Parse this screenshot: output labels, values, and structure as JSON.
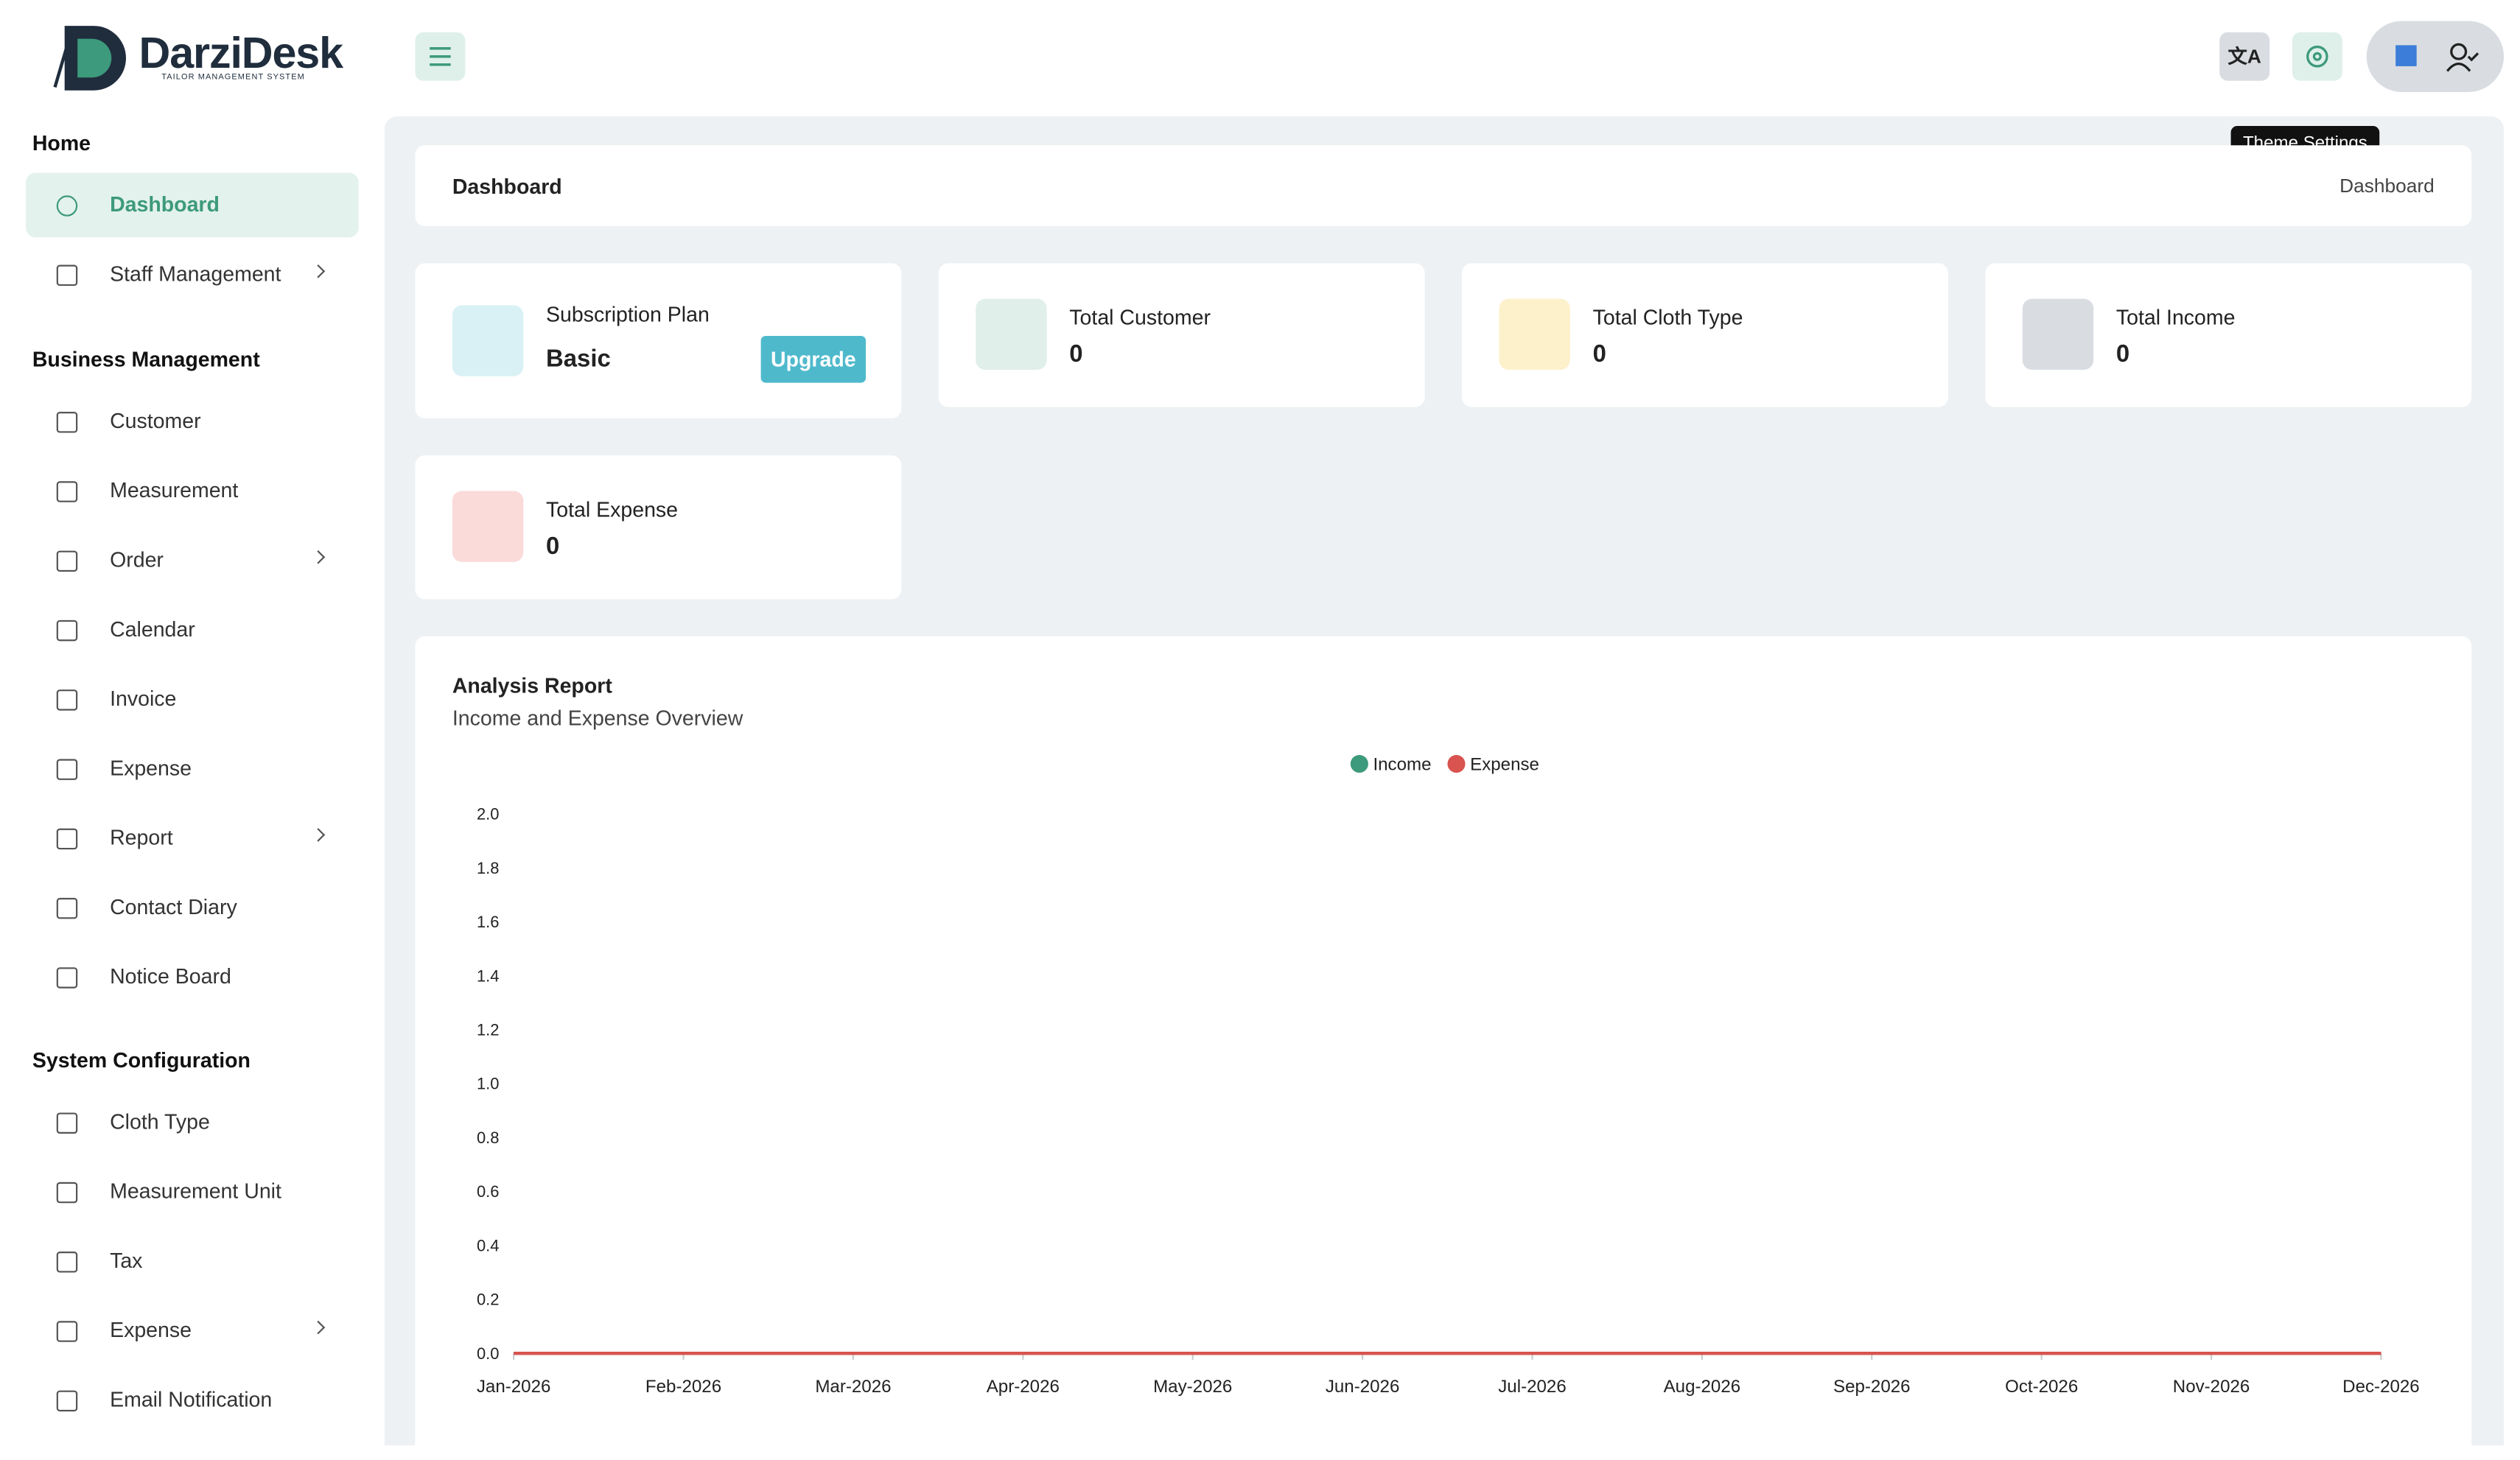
{
  "brand": {
    "name": "DarziDesk",
    "tagline": "TAILOR MANAGEMENT SYSTEM"
  },
  "tooltip": "Theme Settings",
  "sidebar": {
    "sections": [
      {
        "title": "Home",
        "items": [
          {
            "label": "Dashboard",
            "active": true
          },
          {
            "label": "Staff Management",
            "has_submenu": true
          }
        ]
      },
      {
        "title": "Business Management",
        "items": [
          {
            "label": "Customer"
          },
          {
            "label": "Measurement"
          },
          {
            "label": "Order",
            "has_submenu": true
          },
          {
            "label": "Calendar"
          },
          {
            "label": "Invoice"
          },
          {
            "label": "Expense"
          },
          {
            "label": "Report",
            "has_submenu": true
          },
          {
            "label": "Contact Diary"
          },
          {
            "label": "Notice Board"
          }
        ]
      },
      {
        "title": "System Configuration",
        "items": [
          {
            "label": "Cloth Type"
          },
          {
            "label": "Measurement Unit"
          },
          {
            "label": "Tax"
          },
          {
            "label": "Expense",
            "has_submenu": true
          },
          {
            "label": "Email Notification"
          }
        ]
      }
    ]
  },
  "breadcrumb": {
    "title": "Dashboard",
    "current": "Dashboard"
  },
  "subscription": {
    "label": "Subscription Plan",
    "plan": "Basic",
    "button": "Upgrade"
  },
  "stats": [
    {
      "label": "Total Customer",
      "value": 0
    },
    {
      "label": "Total Cloth Type",
      "value": 0
    },
    {
      "label": "Total Income",
      "value": 0
    },
    {
      "label": "Total Expense",
      "value": 0
    }
  ],
  "report": {
    "title": "Analysis Report",
    "subtitle": "Income and Expense Overview"
  },
  "chart_data": {
    "type": "line",
    "categories": [
      "Jan-2026",
      "Feb-2026",
      "Mar-2026",
      "Apr-2026",
      "May-2026",
      "Jun-2026",
      "Jul-2026",
      "Aug-2026",
      "Sep-2026",
      "Oct-2026",
      "Nov-2026",
      "Dec-2026"
    ],
    "series": [
      {
        "name": "Income",
        "color": "#3d9a7c",
        "values": [
          0,
          0,
          0,
          0,
          0,
          0,
          0,
          0,
          0,
          0,
          0,
          0
        ]
      },
      {
        "name": "Expense",
        "color": "#d9534f",
        "values": [
          0,
          0,
          0,
          0,
          0,
          0,
          0,
          0,
          0,
          0,
          0,
          0
        ]
      }
    ],
    "ylim": [
      0,
      2
    ],
    "yticks": [
      {
        "value": 0,
        "label": "0.0"
      },
      0.2,
      0.4,
      0.6,
      0.8,
      {
        "value": 1,
        "label": "1.0"
      },
      1.2,
      1.4,
      1.6,
      1.8,
      {
        "value": 2,
        "label": "2.0"
      }
    ],
    "legend": "top"
  }
}
